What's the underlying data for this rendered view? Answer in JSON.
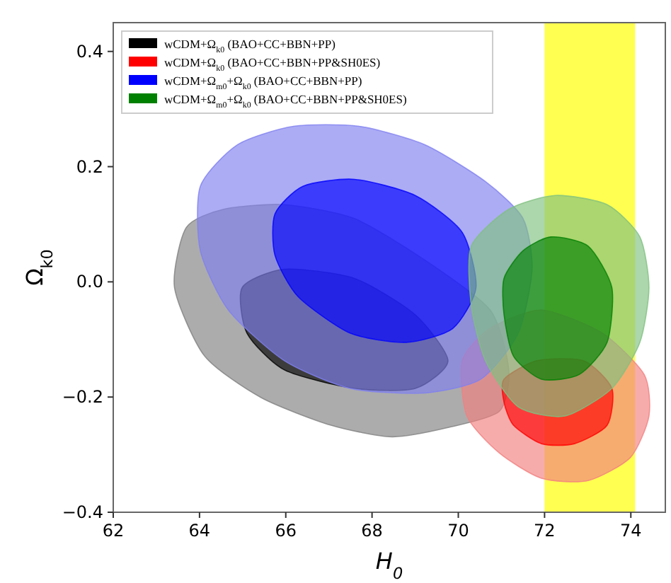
{
  "chart_data": {
    "type": "area",
    "xlabel": "H$_{0}$",
    "ylabel": "Ω$_{k0}$",
    "xlim": [
      62,
      74.8
    ],
    "ylim": [
      -0.4,
      0.45
    ],
    "xticks": [
      62,
      64,
      66,
      68,
      70,
      72,
      74
    ],
    "yticks": [
      {
        "value": -0.4,
        "label": "−0.4"
      },
      {
        "value": -0.2,
        "label": "−0.2"
      },
      {
        "value": 0,
        "label": "0.0"
      },
      0.2,
      0.4
    ],
    "legend": "top left",
    "grid": false,
    "bands": [
      {
        "axis": "x",
        "from": 72,
        "to": 74.1,
        "color": "#ffff33"
      }
    ],
    "series": [
      {
        "color": "#808080",
        "x": [
          63.42,
          63.69,
          64.56,
          65.97,
          67.59,
          69.22,
          70.74,
          71.17,
          70.95,
          69.76,
          68.46,
          67.05,
          65.43,
          64.12
        ],
        "values": [
          -0.01,
          0.094,
          0.126,
          0.134,
          0.11,
          0.038,
          -0.049,
          -0.153,
          -0.225,
          -0.253,
          -0.269,
          -0.249,
          -0.201,
          -0.129
        ]
      },
      {
        "name": "wCDM+Ω$_{k0}$ (BAO+CC+BBN+PP)",
        "color": "#000000",
        "x": [
          64.99,
          65.97,
          67.59,
          69.0,
          69.76,
          69.0,
          67.59,
          65.97,
          65.1
        ],
        "values": [
          -0.01,
          0.022,
          0.006,
          -0.057,
          -0.137,
          -0.185,
          -0.185,
          -0.153,
          -0.089
        ]
      },
      {
        "color": "#f28080",
        "x": [
          70.09,
          70.74,
          71.93,
          73.34,
          74.31,
          74.42,
          73.99,
          73.01,
          71.93,
          70.95,
          70.2
        ],
        "values": [
          -0.137,
          -0.081,
          -0.049,
          -0.089,
          -0.161,
          -0.233,
          -0.305,
          -0.345,
          -0.341,
          -0.297,
          -0.233
        ]
      },
      {
        "name": "wCDM+Ω$_{k0}$ (BAO+CC+BBN+PP&SH0ES)",
        "color": "#ff0000",
        "x": [
          71.06,
          71.82,
          72.91,
          73.56,
          73.45,
          72.69,
          71.93,
          71.28,
          71.06
        ],
        "values": [
          -0.169,
          -0.137,
          -0.137,
          -0.185,
          -0.249,
          -0.281,
          -0.281,
          -0.249,
          -0.209
        ]
      },
      {
        "color": "#8080f0",
        "x": [
          64.02,
          64.88,
          66.18,
          67.7,
          69.22,
          70.63,
          71.5,
          71.71,
          71.39,
          70.52,
          69.22,
          67.49,
          65.97,
          64.67,
          64.02
        ],
        "values": [
          0.166,
          0.238,
          0.27,
          0.27,
          0.238,
          0.174,
          0.11,
          0.022,
          -0.089,
          -0.169,
          -0.193,
          -0.185,
          -0.137,
          -0.049,
          0.054
        ]
      },
      {
        "name": "wCDM+Ω$_{m0}$+Ω$_{k0}$ (BAO+CC+BBN+PP)",
        "color": "#0000ff",
        "x": [
          65.75,
          66.4,
          67.59,
          69.0,
          70.09,
          70.41,
          69.87,
          68.79,
          67.49,
          66.29,
          65.75
        ],
        "values": [
          0.118,
          0.166,
          0.178,
          0.15,
          0.086,
          -0.01,
          -0.081,
          -0.105,
          -0.089,
          -0.026,
          0.046
        ]
      },
      {
        "color": "#80c080",
        "x": [
          70.3,
          71.17,
          72.25,
          73.45,
          74.21,
          74.42,
          74.21,
          73.56,
          72.47,
          71.39,
          70.63,
          70.3
        ],
        "values": [
          0.062,
          0.126,
          0.15,
          0.134,
          0.078,
          -0.01,
          -0.105,
          -0.185,
          -0.233,
          -0.217,
          -0.137,
          -0.041
        ]
      },
      {
        "name": "wCDM+Ω$_{m0}$+Ω$_{k0}$ (BAO+CC+BBN+PP&SH0ES)",
        "color": "#008000",
        "x": [
          71.06,
          71.5,
          72.15,
          73.01,
          73.56,
          73.45,
          72.8,
          71.93,
          71.28,
          71.06
        ],
        "values": [
          0.006,
          0.054,
          0.078,
          0.062,
          -0.01,
          -0.105,
          -0.161,
          -0.169,
          -0.129,
          -0.057
        ]
      }
    ]
  }
}
